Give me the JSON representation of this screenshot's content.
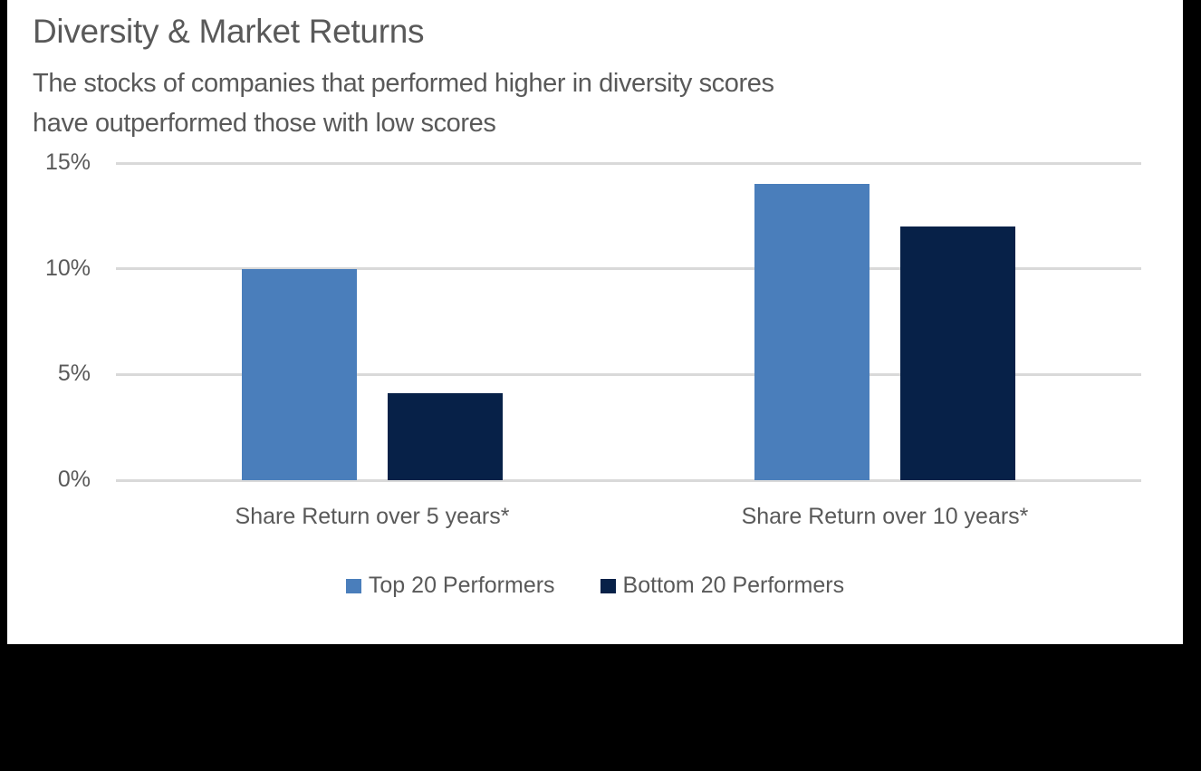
{
  "chart_data": {
    "type": "bar",
    "title": "Diversity & Market Returns",
    "subtitle_lines": [
      "The stocks of companies that performed higher in diversity scores",
      "have outperformed those with low scores"
    ],
    "categories": [
      "Share Return over 5 years*",
      "Share Return over 10 years*"
    ],
    "series": [
      {
        "name": "Top 20 Performers",
        "color": "#4a7ebb",
        "values": [
          10,
          14
        ]
      },
      {
        "name": "Bottom 20 Performers",
        "color": "#072148",
        "values": [
          4.1,
          12
        ]
      }
    ],
    "xlabel": "",
    "ylabel": "",
    "ylim": [
      0,
      15
    ],
    "yticks": [
      "0%",
      "5%",
      "10%",
      "15%"
    ],
    "ytick_values": [
      0,
      5,
      10,
      15
    ],
    "grid": true,
    "legend_position": "bottom"
  }
}
